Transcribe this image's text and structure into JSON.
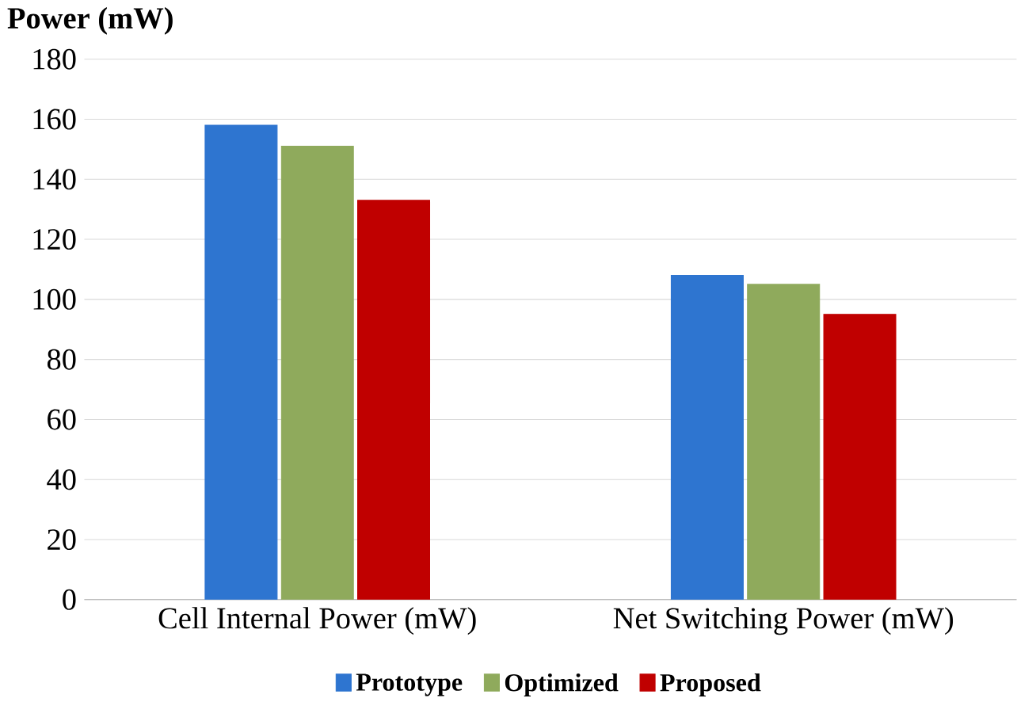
{
  "chart_data": {
    "type": "bar",
    "ylabel": "Power (mW)",
    "categories": [
      "Cell Internal Power (mW)",
      "Net Switching Power (mW)"
    ],
    "series": [
      {
        "name": "Prototype",
        "color": "#2e75d0",
        "values": [
          158,
          108
        ]
      },
      {
        "name": "Optimized",
        "color": "#8faa5c",
        "values": [
          151,
          105
        ]
      },
      {
        "name": "Proposed",
        "color": "#c00000",
        "values": [
          133,
          95
        ]
      }
    ],
    "ylim": [
      0,
      180
    ],
    "yticks": [
      0,
      20,
      40,
      60,
      80,
      100,
      120,
      140,
      160,
      180
    ],
    "grid": "y",
    "legend": "bottom"
  }
}
